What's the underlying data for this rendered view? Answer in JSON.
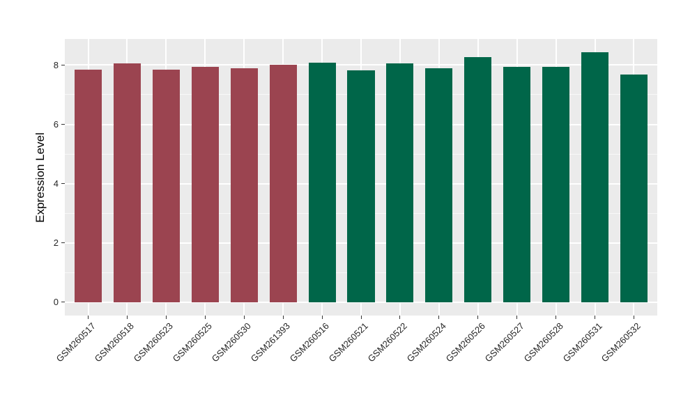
{
  "chart_data": {
    "type": "bar",
    "title": "",
    "xlabel": "",
    "ylabel": "Expression Level",
    "categories": [
      "GSM260517",
      "GSM260518",
      "GSM260523",
      "GSM260525",
      "GSM260530",
      "GSM261393",
      "GSM260516",
      "GSM260521",
      "GSM260522",
      "GSM260524",
      "GSM260526",
      "GSM260527",
      "GSM260528",
      "GSM260531",
      "GSM260532"
    ],
    "values": [
      7.84,
      8.05,
      7.84,
      7.94,
      7.89,
      8.01,
      8.07,
      7.82,
      8.05,
      7.9,
      8.26,
      7.94,
      7.94,
      8.43,
      7.69
    ],
    "groups": [
      "group1",
      "group1",
      "group1",
      "group1",
      "group1",
      "group1",
      "group2",
      "group2",
      "group2",
      "group2",
      "group2",
      "group2",
      "group2",
      "group2",
      "group2"
    ],
    "group_colors": {
      "group1": "#9B4450",
      "group2": "#006649"
    },
    "yticks_major": [
      0,
      2,
      4,
      6,
      8
    ],
    "yticks_minor": [
      1,
      3,
      5,
      7
    ],
    "ylim": [
      -0.45,
      8.88
    ],
    "legend": "none",
    "grid": "white major and minor horizontal lines, white vertical lines at bar centers"
  },
  "style": {
    "figure_bg": "#FFFFFF",
    "panel_bg": "#EBEBEB",
    "grid_color": "#FFFFFF",
    "tick_color": "#333333",
    "tick_label_color": "#262626",
    "axis_title_color": "#000000"
  }
}
